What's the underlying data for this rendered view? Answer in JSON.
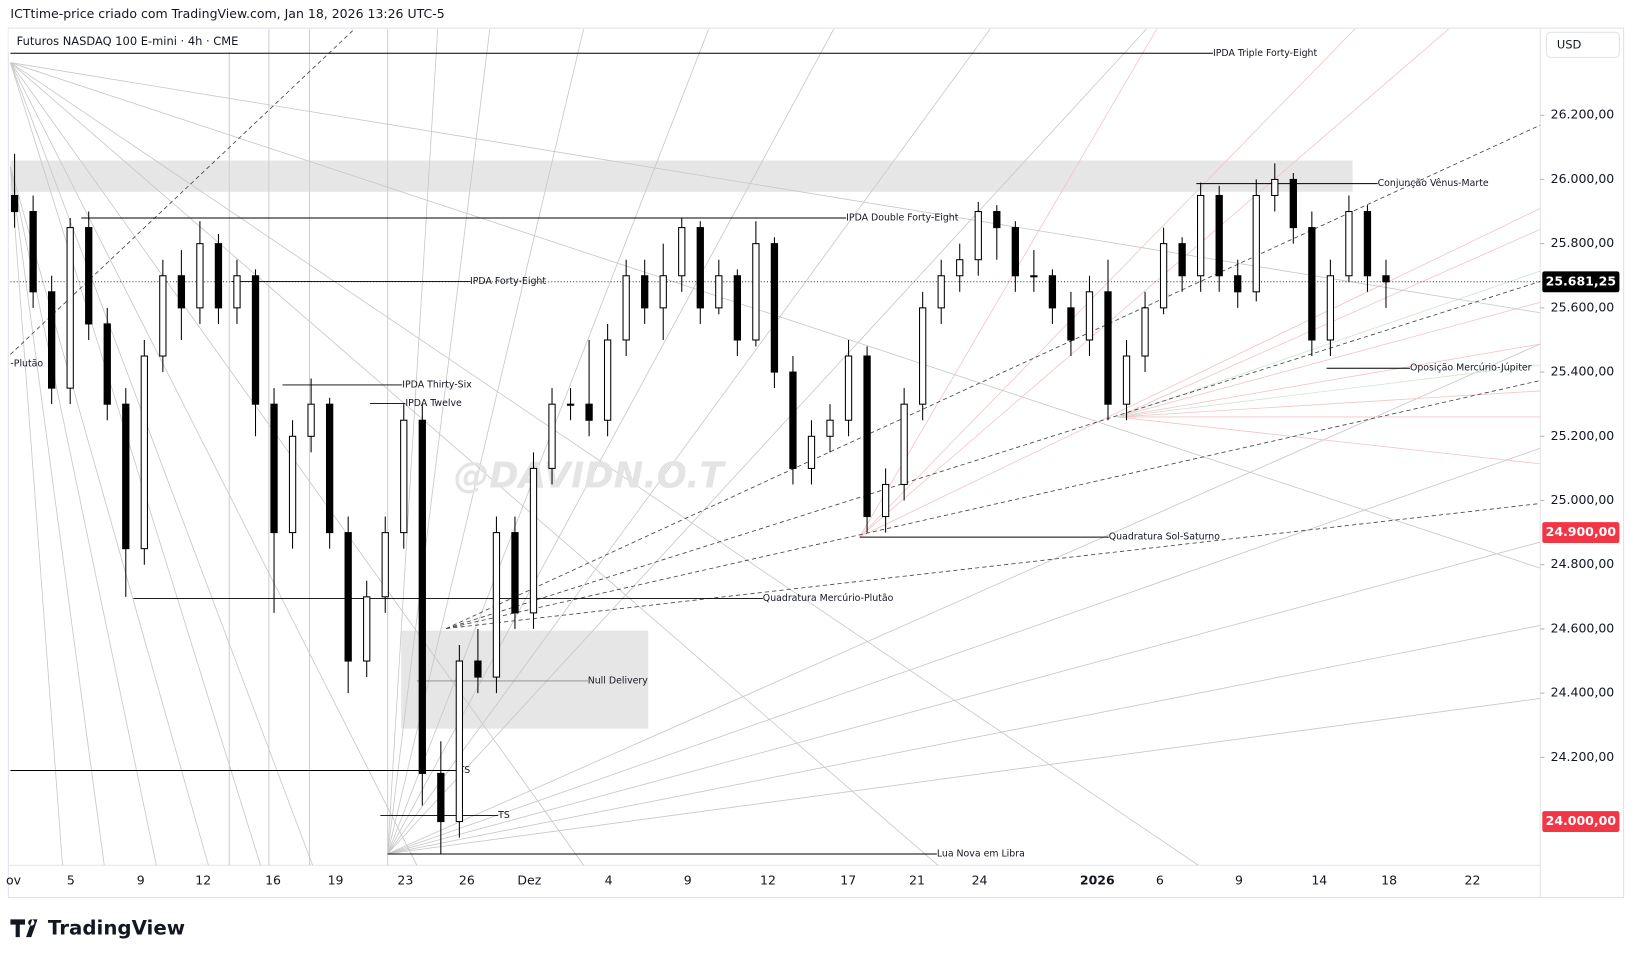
{
  "header": {
    "caption": "ICTtime-price criado com TradingView.com, Jan 18, 2026 13:26 UTC-5",
    "symbol": "Futuros NASDAQ 100 E-mini · 4h · CME",
    "currency": "USD",
    "watermark": "@DAVIDN.O.T",
    "brand": "TradingView"
  },
  "chart_data": {
    "type": "candlestick",
    "ylim": [
      23864,
      26468
    ],
    "yticks": [
      {
        "value": 24200,
        "label": "24.200,00"
      },
      {
        "value": 24400,
        "label": "24.400,00"
      },
      {
        "value": 24600,
        "label": "24.600,00"
      },
      {
        "value": 24800,
        "label": "24.800,00"
      },
      {
        "value": 25000,
        "label": "25.000,00"
      },
      {
        "value": 25200,
        "label": "25.200,00"
      },
      {
        "value": 25400,
        "label": "25.400,00"
      },
      {
        "value": 25600,
        "label": "25.600,00"
      },
      {
        "value": 25800,
        "label": "25.800,00"
      },
      {
        "value": 26000,
        "label": "26.000,00"
      },
      {
        "value": 26200,
        "label": "26.200,00"
      }
    ],
    "x_labels": [
      "ov",
      "5",
      "9",
      "12",
      "16",
      "19",
      "23",
      "26",
      "Dez",
      "4",
      "9",
      "12",
      "17",
      "21",
      "24",
      "2026",
      "6",
      "9",
      "14",
      "18",
      "22"
    ],
    "open": [
      25950,
      25900,
      25650,
      25350,
      25850,
      25550,
      25300,
      24850,
      25450,
      25700,
      25600,
      25800,
      25600,
      25700,
      25300,
      24900,
      25200,
      25300,
      24900,
      24500,
      24700,
      24900,
      25250,
      24150,
      24000,
      24500,
      24450,
      24900,
      24650,
      25100,
      25300,
      25300,
      25250,
      25500,
      25700,
      25600,
      25700,
      25850,
      25600,
      25700,
      25500,
      25800,
      25400,
      25100,
      25200,
      25250,
      25450,
      24950,
      25050,
      25300,
      25600,
      25700,
      25750,
      25900,
      25850,
      25700,
      25700,
      25600,
      25500,
      25650,
      25300,
      25450,
      25600,
      25800,
      25700,
      25950,
      25700,
      25650,
      25950,
      26000,
      25850,
      25500,
      25700,
      25900,
      25700
    ],
    "high": [
      26080,
      25950,
      25700,
      25880,
      25900,
      25600,
      25350,
      25500,
      25750,
      25780,
      25870,
      25830,
      25750,
      25720,
      25350,
      25250,
      25380,
      25320,
      24950,
      24750,
      24950,
      25300,
      25300,
      24250,
      24550,
      24600,
      24950,
      24950,
      25150,
      25350,
      25350,
      25500,
      25550,
      25750,
      25750,
      25800,
      25880,
      25870,
      25750,
      25720,
      25870,
      25820,
      25450,
      25250,
      25300,
      25500,
      25480,
      25100,
      25350,
      25650,
      25750,
      25800,
      25930,
      25920,
      25870,
      25780,
      25720,
      25650,
      25700,
      25750,
      25500,
      25650,
      25850,
      25820,
      25990,
      25980,
      25750,
      26000,
      26050,
      26020,
      25900,
      25750,
      25950,
      25920,
      25750
    ],
    "low": [
      25850,
      25600,
      25300,
      25300,
      25500,
      25250,
      24700,
      24800,
      25400,
      25500,
      25550,
      25550,
      25550,
      25200,
      24650,
      24850,
      25150,
      24850,
      24400,
      24450,
      24650,
      24850,
      24050,
      23900,
      23950,
      24400,
      24400,
      24600,
      24600,
      25050,
      25250,
      25200,
      25200,
      25450,
      25550,
      25500,
      25650,
      25550,
      25580,
      25450,
      25480,
      25350,
      25050,
      25050,
      25150,
      25200,
      24900,
      24900,
      25000,
      25250,
      25550,
      25650,
      25700,
      25750,
      25650,
      25650,
      25550,
      25450,
      25450,
      25250,
      25250,
      25400,
      25580,
      25650,
      25650,
      25650,
      25600,
      25620,
      25900,
      25800,
      25450,
      25450,
      25680,
      25650,
      25600
    ],
    "close": [
      25900,
      25650,
      25350,
      25850,
      25550,
      25300,
      24850,
      25450,
      25700,
      25600,
      25800,
      25600,
      25700,
      25300,
      24900,
      25200,
      25300,
      24900,
      24500,
      24700,
      24900,
      25250,
      24150,
      24000,
      24500,
      24450,
      24900,
      24650,
      25100,
      25300,
      25300,
      25250,
      25500,
      25700,
      25600,
      25700,
      25850,
      25600,
      25700,
      25500,
      25800,
      25400,
      25100,
      25200,
      25250,
      25450,
      24950,
      25050,
      25300,
      25600,
      25700,
      25750,
      25900,
      25850,
      25700,
      25700,
      25600,
      25500,
      25650,
      25300,
      25450,
      25600,
      25800,
      25700,
      25950,
      25700,
      25650,
      25950,
      26000,
      25850,
      25500,
      25700,
      25900,
      25700,
      25681.25
    ],
    "levels": [
      {
        "label": "IPDA Triple Forty-Eight",
        "value": 26393
      },
      {
        "label": "Conjunção Vênus-Marte",
        "value": 25987
      },
      {
        "label": "IPDA Double Forty-Eight",
        "value": 25880
      },
      {
        "label": "IPDA Forty-Eight",
        "value": 25682
      },
      {
        "label": "IPDA Thirty-Six",
        "value": 25360
      },
      {
        "label": "IPDA Twelve",
        "value": 25302
      },
      {
        "label": "Oposição Mercúrio-Júpiter",
        "value": 25412
      },
      {
        "label": "Quadratura Sol-Saturno",
        "value": 24886
      },
      {
        "label": "Quadratura Mercúrio-Plutão",
        "value": 24695
      },
      {
        "label": "Null Delivery",
        "value": 24438
      },
      {
        "label": "TS",
        "value": 24159
      },
      {
        "label": "TS",
        "value": 24019
      },
      {
        "label": "Lua Nova em Libra",
        "value": 23899
      }
    ],
    "cut_label": {
      "label": "-Plutão",
      "value": 25425
    },
    "price_labels": [
      {
        "value": 25681.25,
        "label": "25.681,25",
        "color": "#000000"
      },
      {
        "value": 24900,
        "label": "24.900,00",
        "color": "#f23645"
      },
      {
        "value": 24000,
        "label": "24.000,00",
        "color": "#f23645"
      }
    ],
    "up_color": "#ffffff",
    "down_color": "#000000"
  }
}
